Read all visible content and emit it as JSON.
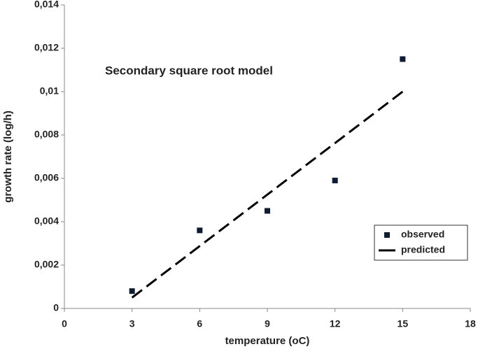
{
  "chart_data": {
    "type": "scatter",
    "annotation": "Secondary square root model",
    "xlabel": "temperature (oC)",
    "ylabel": "growth rate (log/h)",
    "xlim": [
      0,
      18
    ],
    "xticks": [
      0,
      3,
      6,
      9,
      12,
      15,
      18
    ],
    "ylim": [
      0,
      0.014
    ],
    "yticks": [
      0,
      {
        "value": 0.002,
        "label": "0,002"
      },
      {
        "value": 0.004,
        "label": "0,004"
      },
      {
        "value": 0.006,
        "label": "0,006"
      },
      {
        "value": 0.008,
        "label": "0,008"
      },
      {
        "value": 0.01,
        "label": "0,01"
      },
      {
        "value": 0.012,
        "label": "0,012"
      },
      {
        "value": 0.014,
        "label": "0,014"
      }
    ],
    "grid": false,
    "legend": "lower right",
    "series": [
      {
        "name": "observed",
        "type": "scatter",
        "color": "#0d1b33",
        "x": [
          3,
          6,
          9,
          12,
          15
        ],
        "values": [
          0.0008,
          0.0036,
          0.0045,
          0.0059,
          0.0115
        ]
      },
      {
        "name": "predicted",
        "type": "line",
        "color": "#000000",
        "x": [
          3,
          15
        ],
        "values": [
          0.0005,
          0.01
        ]
      }
    ]
  }
}
